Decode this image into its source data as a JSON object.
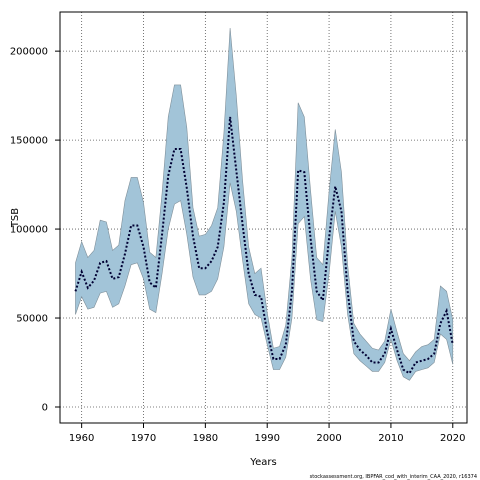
{
  "chart_data": {
    "type": "area",
    "title": "",
    "xlabel": "Years",
    "ylabel": "TSB",
    "xlim": [
      1956.5,
      2022.3
    ],
    "ylim": [
      -9000,
      222000
    ],
    "xticks": [
      1960,
      1970,
      1980,
      1990,
      2000,
      2010,
      2020
    ],
    "yticks": [
      0,
      50000,
      100000,
      150000,
      200000
    ],
    "xtick_labels": [
      "1960",
      "1970",
      "1980",
      "1990",
      "2000",
      "2010",
      "2020"
    ],
    "ytick_labels": [
      "0",
      "50000",
      "100000",
      "150000",
      "200000"
    ],
    "grid": true,
    "legend": "none",
    "colors": {
      "band_fill": "#a2c4d8",
      "band_edge": "#7f8f99",
      "line": "#000033",
      "grid": "#555555"
    },
    "credit": "stockassessment.org, IBPFAR_cod_with_interim_CAA_2020, r16374",
    "x": [
      1959,
      1960,
      1961,
      1962,
      1963,
      1964,
      1965,
      1966,
      1967,
      1968,
      1969,
      1970,
      1971,
      1972,
      1973,
      1974,
      1975,
      1976,
      1977,
      1978,
      1979,
      1980,
      1981,
      1982,
      1983,
      1984,
      1985,
      1986,
      1987,
      1988,
      1989,
      1990,
      1991,
      1992,
      1993,
      1994,
      1995,
      1996,
      1997,
      1998,
      1999,
      2000,
      2001,
      2002,
      2003,
      2004,
      2005,
      2006,
      2007,
      2008,
      2009,
      2010,
      2011,
      2012,
      2013,
      2014,
      2015,
      2016,
      2017,
      2018,
      2019,
      2020
    ],
    "series": [
      {
        "name": "",
        "role": "lower",
        "values": [
          52000,
          62000,
          55000,
          56000,
          64000,
          65000,
          56000,
          58000,
          68000,
          80000,
          81000,
          72000,
          55000,
          53000,
          75000,
          100000,
          114000,
          116000,
          97000,
          73000,
          63000,
          63000,
          65000,
          72000,
          90000,
          126000,
          110000,
          83000,
          58000,
          52000,
          50000,
          35000,
          21000,
          21000,
          28000,
          50000,
          103000,
          107000,
          72000,
          49000,
          48000,
          75000,
          110000,
          90000,
          52000,
          30000,
          26000,
          23000,
          20000,
          20000,
          25000,
          38000,
          26000,
          17000,
          15000,
          20000,
          21000,
          22000,
          25000,
          41000,
          38000,
          24000
        ]
      },
      {
        "name": "",
        "role": "estimate",
        "values": [
          65000,
          76000,
          67000,
          71000,
          81000,
          82000,
          72000,
          73000,
          86000,
          102000,
          102000,
          90000,
          70000,
          67000,
          97000,
          130000,
          145000,
          145000,
          123000,
          96000,
          78000,
          78000,
          82000,
          90000,
          115000,
          163000,
          133000,
          103000,
          75000,
          63000,
          62000,
          42000,
          27000,
          27000,
          35000,
          65000,
          133000,
          132000,
          95000,
          65000,
          60000,
          95000,
          124000,
          110000,
          65000,
          37000,
          32000,
          29000,
          25000,
          25000,
          30000,
          44000,
          32000,
          21000,
          19000,
          25000,
          26000,
          27000,
          30000,
          47000,
          54000,
          35000
        ]
      },
      {
        "name": "",
        "role": "upper",
        "values": [
          81000,
          93000,
          84000,
          88000,
          105000,
          104000,
          88000,
          91000,
          116000,
          129000,
          129000,
          115000,
          87000,
          84000,
          120000,
          163000,
          181000,
          181000,
          157000,
          112000,
          96000,
          97000,
          102000,
          112000,
          154000,
          213000,
          175000,
          128000,
          90000,
          75000,
          78000,
          53000,
          33000,
          34000,
          46000,
          84000,
          171000,
          163000,
          122000,
          84000,
          80000,
          121000,
          156000,
          132000,
          80000,
          47000,
          41000,
          37000,
          33000,
          32000,
          37000,
          55000,
          42000,
          30000,
          26000,
          31000,
          34000,
          35000,
          38000,
          68000,
          65000,
          49000
        ]
      }
    ]
  }
}
